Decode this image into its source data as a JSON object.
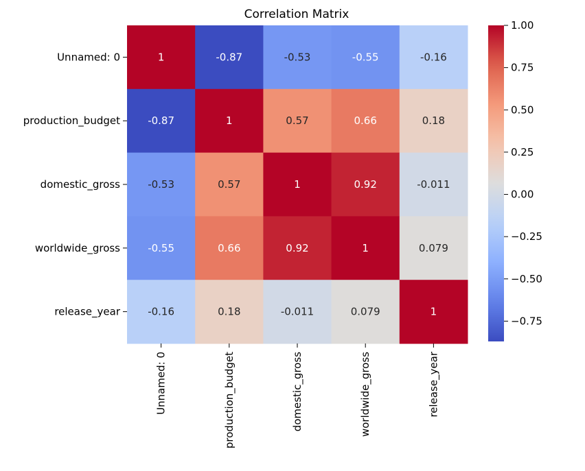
{
  "chart_data": {
    "type": "heatmap",
    "title": "Correlation Matrix",
    "x_categories": [
      "Unnamed: 0",
      "production_budget",
      "domestic_gross",
      "worldwide_gross",
      "release_year"
    ],
    "y_categories": [
      "Unnamed: 0",
      "production_budget",
      "domestic_gross",
      "worldwide_gross",
      "release_year"
    ],
    "values": [
      [
        1,
        -0.87,
        -0.53,
        -0.55,
        -0.16
      ],
      [
        -0.87,
        1,
        0.57,
        0.66,
        0.18
      ],
      [
        -0.53,
        0.57,
        1,
        0.92,
        -0.011
      ],
      [
        -0.55,
        0.66,
        0.92,
        1,
        0.079
      ],
      [
        -0.16,
        0.18,
        -0.011,
        0.079,
        1
      ]
    ],
    "labels": [
      [
        "1",
        "-0.87",
        "-0.53",
        "-0.55",
        "-0.16"
      ],
      [
        "-0.87",
        "1",
        "0.57",
        "0.66",
        "0.18"
      ],
      [
        "-0.53",
        "0.57",
        "1",
        "0.92",
        "-0.011"
      ],
      [
        "-0.55",
        "0.66",
        "0.92",
        "1",
        "0.079"
      ],
      [
        "-0.16",
        "0.18",
        "-0.011",
        "0.079",
        "1"
      ]
    ],
    "colorbar": {
      "colormap": "coolwarm",
      "min": -0.87,
      "max": 1.0,
      "ticks": [
        1.0,
        0.75,
        0.5,
        0.25,
        0.0,
        -0.25,
        -0.5,
        -0.75
      ],
      "tick_labels": [
        "1.00",
        "0.75",
        "0.50",
        "0.25",
        "0.00",
        "−0.25",
        "−0.50",
        "−0.75"
      ]
    }
  }
}
